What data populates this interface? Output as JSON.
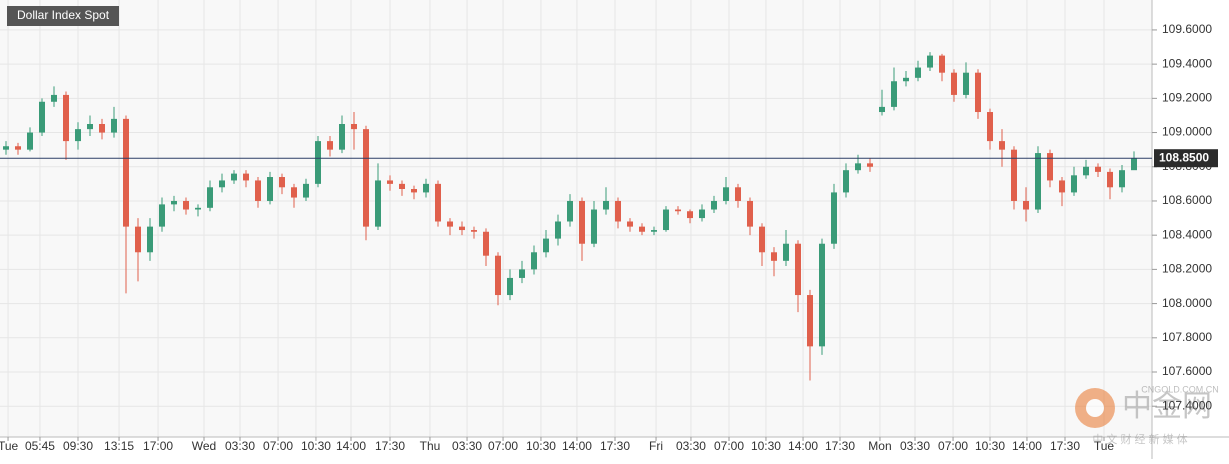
{
  "chart_data": {
    "type": "candlestick",
    "title": "Dollar Index Spot",
    "up_color": "#3a9b78",
    "down_color": "#e0604c",
    "grid": true,
    "open": [
      108.9,
      108.92,
      108.9,
      109.0,
      109.18,
      109.22,
      108.95,
      109.02,
      109.05,
      109.0,
      109.08,
      108.45,
      108.3,
      108.45,
      108.58,
      108.6,
      108.55,
      108.56,
      108.68,
      108.72,
      108.76,
      108.72,
      108.6,
      108.74,
      108.68,
      108.62,
      108.7,
      108.95,
      108.9,
      109.05,
      109.02,
      108.45,
      108.72,
      108.7,
      108.67,
      108.65,
      108.7,
      108.48,
      108.45,
      108.43,
      108.42,
      108.28,
      108.05,
      108.15,
      108.2,
      108.3,
      108.38,
      108.48,
      108.6,
      108.35,
      108.55,
      108.6,
      108.48,
      108.45,
      108.42,
      108.43,
      108.55,
      108.54,
      108.5,
      108.55,
      108.6,
      108.68,
      108.6,
      108.45,
      108.3,
      108.25,
      108.35,
      108.05,
      107.75,
      108.35,
      108.65,
      108.78,
      108.82,
      109.12,
      109.15,
      109.3,
      109.32,
      109.38,
      109.45,
      109.35,
      109.22,
      109.35,
      109.12,
      108.95,
      108.9,
      108.6,
      108.55,
      108.88,
      108.72,
      108.65,
      108.75,
      108.8,
      108.77,
      108.68,
      108.78
    ],
    "high": [
      108.95,
      108.94,
      109.03,
      109.2,
      109.27,
      109.24,
      109.06,
      109.1,
      109.08,
      109.15,
      109.1,
      108.5,
      108.5,
      108.62,
      108.63,
      108.62,
      108.58,
      108.72,
      108.76,
      108.78,
      108.78,
      108.74,
      108.77,
      108.76,
      108.7,
      108.73,
      108.98,
      108.98,
      109.1,
      109.12,
      109.04,
      108.82,
      108.75,
      108.72,
      108.69,
      108.73,
      108.72,
      108.5,
      108.48,
      108.45,
      108.44,
      108.3,
      108.2,
      108.25,
      108.34,
      108.43,
      108.52,
      108.64,
      108.62,
      108.6,
      108.68,
      108.62,
      108.5,
      108.47,
      108.45,
      108.57,
      108.57,
      108.55,
      108.58,
      108.63,
      108.74,
      108.7,
      108.62,
      108.47,
      108.33,
      108.43,
      108.37,
      108.08,
      108.38,
      108.7,
      108.82,
      108.87,
      108.85,
      109.25,
      109.38,
      109.36,
      109.42,
      109.47,
      109.46,
      109.37,
      109.41,
      109.37,
      109.14,
      109.02,
      108.92,
      108.68,
      108.92,
      108.9,
      108.74,
      108.8,
      108.84,
      108.82,
      108.79,
      108.81,
      108.89
    ],
    "low": [
      108.87,
      108.87,
      108.89,
      108.98,
      109.15,
      108.84,
      108.9,
      108.98,
      108.96,
      108.97,
      108.06,
      108.13,
      108.25,
      108.42,
      108.54,
      108.52,
      108.51,
      108.54,
      108.65,
      108.7,
      108.68,
      108.56,
      108.58,
      108.64,
      108.56,
      108.6,
      108.68,
      108.86,
      108.88,
      108.9,
      108.37,
      108.43,
      108.66,
      108.63,
      108.61,
      108.62,
      108.45,
      108.4,
      108.4,
      108.38,
      108.22,
      107.99,
      108.02,
      108.12,
      108.17,
      108.27,
      108.34,
      108.45,
      108.25,
      108.33,
      108.52,
      108.44,
      108.42,
      108.4,
      108.4,
      108.42,
      108.52,
      108.47,
      108.48,
      108.53,
      108.58,
      108.56,
      108.4,
      108.22,
      108.16,
      108.22,
      107.95,
      107.55,
      107.7,
      108.32,
      108.62,
      108.76,
      108.77,
      109.1,
      109.13,
      109.27,
      109.3,
      109.36,
      109.3,
      109.18,
      109.2,
      109.08,
      108.9,
      108.8,
      108.55,
      108.48,
      108.53,
      108.68,
      108.57,
      108.63,
      108.73,
      108.74,
      108.61,
      108.65,
      108.8
    ],
    "close": [
      108.92,
      108.9,
      109.0,
      109.18,
      109.22,
      108.95,
      109.02,
      109.05,
      109.0,
      109.08,
      108.45,
      108.3,
      108.45,
      108.58,
      108.6,
      108.55,
      108.56,
      108.68,
      108.72,
      108.76,
      108.72,
      108.6,
      108.74,
      108.68,
      108.62,
      108.7,
      108.95,
      108.9,
      109.05,
      109.02,
      108.45,
      108.72,
      108.7,
      108.67,
      108.65,
      108.7,
      108.48,
      108.45,
      108.43,
      108.42,
      108.28,
      108.05,
      108.15,
      108.2,
      108.3,
      108.38,
      108.48,
      108.6,
      108.35,
      108.55,
      108.6,
      108.48,
      108.45,
      108.42,
      108.43,
      108.55,
      108.54,
      108.5,
      108.55,
      108.6,
      108.68,
      108.6,
      108.45,
      108.3,
      108.25,
      108.35,
      108.05,
      107.75,
      108.35,
      108.65,
      108.78,
      108.82,
      108.8,
      109.15,
      109.3,
      109.32,
      109.38,
      109.45,
      109.35,
      109.22,
      109.35,
      109.12,
      108.95,
      108.9,
      108.6,
      108.55,
      108.88,
      108.72,
      108.65,
      108.75,
      108.8,
      108.77,
      108.68,
      108.78,
      108.85
    ],
    "ylim": [
      107.22,
      109.775
    ],
    "yticks": [
      {
        "value": 107.4,
        "label": "107.4000"
      },
      {
        "value": 107.6,
        "label": "107.6000"
      },
      {
        "value": 107.8,
        "label": "107.8000"
      },
      {
        "value": 108.0,
        "label": "108.0000"
      },
      {
        "value": 108.2,
        "label": "108.2000"
      },
      {
        "value": 108.4,
        "label": "108.4000"
      },
      {
        "value": 108.6,
        "label": "108.6000"
      },
      {
        "value": 108.8,
        "label": "108.8000"
      },
      {
        "value": 109.0,
        "label": "109.0000"
      },
      {
        "value": 109.2,
        "label": "109.2000"
      },
      {
        "value": 109.4,
        "label": "109.4000"
      },
      {
        "value": 109.6,
        "label": "109.6000"
      }
    ],
    "xlim": [
      0,
      96
    ],
    "xticks": [
      {
        "value": 0.67,
        "label": "Tue"
      },
      {
        "value": 3.33,
        "label": "05:45"
      },
      {
        "value": 6.5,
        "label": "09:30"
      },
      {
        "value": 9.92,
        "label": "13:15"
      },
      {
        "value": 13.17,
        "label": "17:00"
      },
      {
        "value": 17.0,
        "label": "Wed"
      },
      {
        "value": 20.0,
        "label": "03:30"
      },
      {
        "value": 23.17,
        "label": "07:00"
      },
      {
        "value": 26.33,
        "label": "10:30"
      },
      {
        "value": 29.25,
        "label": "14:00"
      },
      {
        "value": 32.5,
        "label": "17:30"
      },
      {
        "value": 35.83,
        "label": "Thu"
      },
      {
        "value": 38.92,
        "label": "03:30"
      },
      {
        "value": 41.92,
        "label": "07:00"
      },
      {
        "value": 45.08,
        "label": "10:30"
      },
      {
        "value": 48.08,
        "label": "14:00"
      },
      {
        "value": 51.25,
        "label": "17:30"
      },
      {
        "value": 54.67,
        "label": "Fri"
      },
      {
        "value": 57.58,
        "label": "03:30"
      },
      {
        "value": 60.75,
        "label": "07:00"
      },
      {
        "value": 63.83,
        "label": "10:30"
      },
      {
        "value": 66.92,
        "label": "14:00"
      },
      {
        "value": 70.0,
        "label": "17:30"
      },
      {
        "value": 73.33,
        "label": "Mon"
      },
      {
        "value": 76.25,
        "label": "03:30"
      },
      {
        "value": 79.42,
        "label": "07:00"
      },
      {
        "value": 82.5,
        "label": "10:30"
      },
      {
        "value": 85.58,
        "label": "14:00"
      },
      {
        "value": 88.75,
        "label": "17:30"
      },
      {
        "value": 92.0,
        "label": "Tue"
      }
    ],
    "last_price": {
      "value": 108.85,
      "label": "108.8500"
    }
  },
  "watermark": {
    "brand": "中金网",
    "site": "CNGOLD.COM.CN",
    "slogan": "中 文 财 经 新 媒 体"
  }
}
